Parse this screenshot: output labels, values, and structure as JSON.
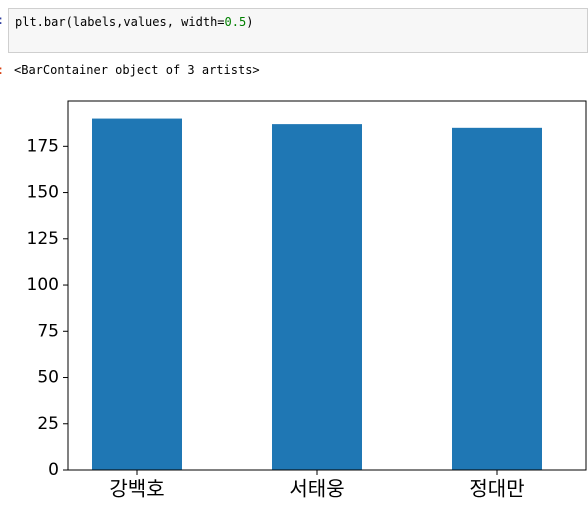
{
  "cell": {
    "input_prompt": ":",
    "code_tokens": [
      "plt.bar(labels,values, width=",
      "0.5",
      ")"
    ],
    "output_prompt": ":",
    "output_text": "<BarContainer object of 3 artists>"
  },
  "chart_data": {
    "type": "bar",
    "categories": [
      "강백호",
      "서태웅",
      "정대만"
    ],
    "values": [
      190,
      187,
      185
    ],
    "color": "#1f77b4",
    "ylim": [
      0,
      199.5
    ],
    "yticks": [
      0,
      25,
      50,
      75,
      100,
      125,
      150,
      175
    ],
    "grid": false
  }
}
